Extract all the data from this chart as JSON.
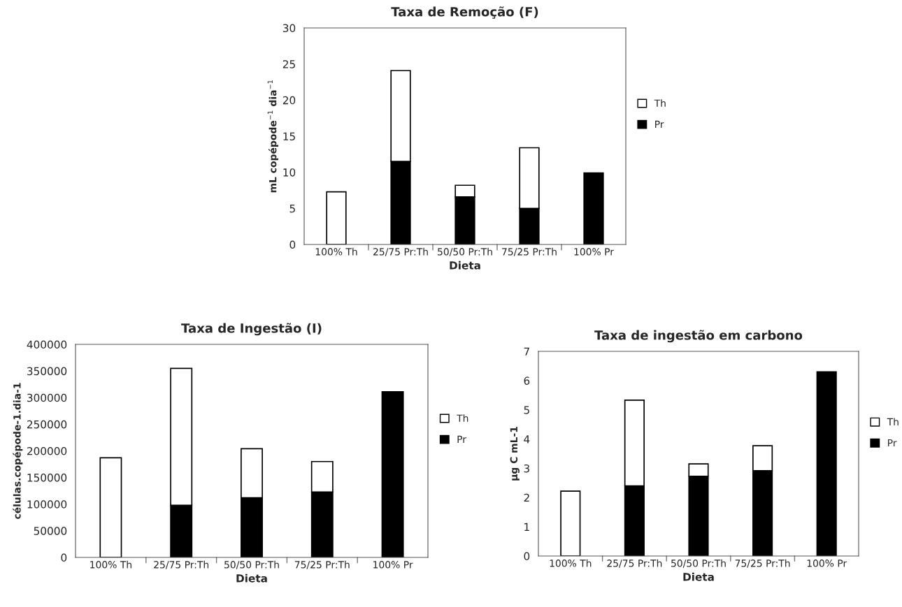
{
  "chart_data": [
    {
      "type": "bar",
      "stacked": true,
      "title": "Taxa de Remoção (F)",
      "xlabel": "Dieta",
      "ylabel": "mL copépode$^{−1}$ dia$^{−1}$",
      "categories": [
        "100% Th",
        "25/75 Pr:Th",
        "50/50 Pr:Th",
        "75/25 Pr:Th",
        "100% Pr"
      ],
      "series": [
        {
          "name": "Pr",
          "color": "#000000",
          "values": [
            null,
            11.5,
            6.6,
            5.0,
            9.9
          ]
        },
        {
          "name": "Th",
          "color": "#ffffff",
          "values": [
            7.3,
            12.6,
            1.6,
            8.4,
            null
          ]
        }
      ],
      "ylim": [
        0,
        30
      ],
      "yticks": [
        0,
        5,
        10,
        15,
        20,
        25,
        30
      ],
      "grid": false,
      "legend": "right"
    },
    {
      "type": "bar",
      "stacked": true,
      "title": "Taxa de Ingestão (I)",
      "xlabel": "Dieta",
      "ylabel": "células.copépode-1.dia-1",
      "categories": [
        "100% Th",
        "25/75 Pr:Th",
        "50/50 Pr:Th",
        "75/25 Pr:Th",
        "100% Pr"
      ],
      "series": [
        {
          "name": "Pr",
          "color": "#000000",
          "values": [
            null,
            98000,
            112000,
            123000,
            311000
          ]
        },
        {
          "name": "Th",
          "color": "#ffffff",
          "values": [
            187000,
            257000,
            92000,
            57000,
            null
          ]
        }
      ],
      "ylim": [
        0,
        400000
      ],
      "yticks": [
        0,
        50000,
        100000,
        150000,
        200000,
        250000,
        300000,
        350000,
        400000
      ],
      "grid": false,
      "legend": "right"
    },
    {
      "type": "bar",
      "stacked": true,
      "title": "Taxa de ingestão em carbono",
      "xlabel": "Dieta",
      "ylabel": "µg C mL-1",
      "categories": [
        "100% Th",
        "25/75 Pr:Th",
        "50/50 Pr:Th",
        "75/25 Pr:Th",
        "100% Pr"
      ],
      "series": [
        {
          "name": "Pr",
          "color": "#000000",
          "values": [
            null,
            2.4,
            2.73,
            2.92,
            6.3
          ]
        },
        {
          "name": "Th",
          "color": "#ffffff",
          "values": [
            2.22,
            2.93,
            0.42,
            0.85,
            null
          ]
        }
      ],
      "ylim": [
        0,
        7
      ],
      "yticks": [
        0,
        1,
        2,
        3,
        4,
        5,
        6,
        7
      ],
      "grid": false,
      "legend": "right"
    }
  ]
}
